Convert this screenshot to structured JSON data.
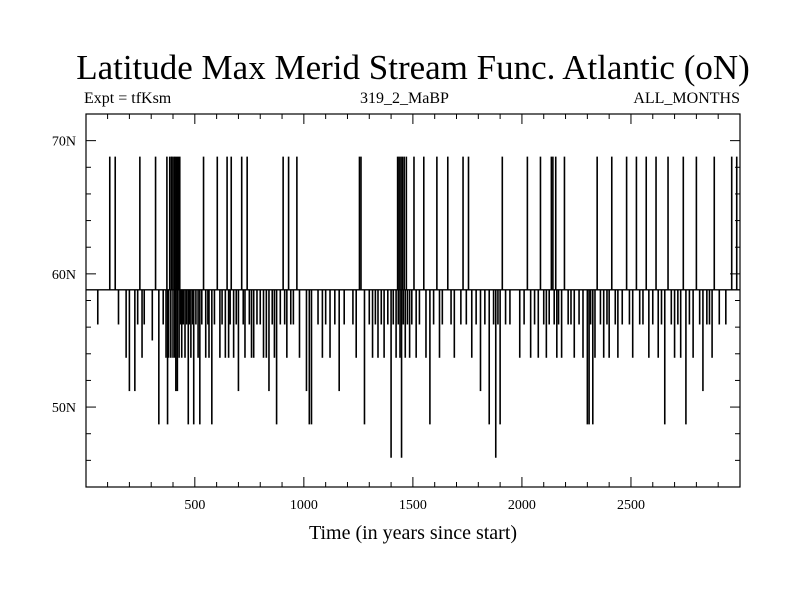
{
  "header": {
    "title": "Latitude Max Merid Stream Func. Atlantic (oN)",
    "left_label": "Expt = tfKsm",
    "center_label": "319_2_MaBP",
    "right_label": "ALL_MONTHS"
  },
  "chart_data": {
    "type": "bar",
    "title": "Latitude Max Merid Stream Func. Atlantic (oN)",
    "xlabel": "Time (in years since start)",
    "ylabel": "",
    "xlim": [
      1,
      3000
    ],
    "ylim": [
      44,
      72
    ],
    "baseline": 58.8,
    "grid": false,
    "x_ticks": [
      500,
      1000,
      1500,
      2000,
      2500
    ],
    "x_tick_labels": [
      "500",
      "1000",
      "1500",
      "2000",
      "2500"
    ],
    "y_ticks": [
      50,
      60,
      70
    ],
    "y_tick_labels": [
      "50N",
      "60N",
      "70N"
    ],
    "series": [
      {
        "points": [
          [
            55,
            56.2
          ],
          [
            110,
            68.8
          ],
          [
            135,
            68.8
          ],
          [
            150,
            56.2
          ],
          [
            185,
            53.7
          ],
          [
            200,
            51.2
          ],
          [
            225,
            51.2
          ],
          [
            238,
            56.2
          ],
          [
            248,
            68.8
          ],
          [
            258,
            53.7
          ],
          [
            268,
            56.2
          ],
          [
            305,
            55.0
          ],
          [
            320,
            68.8
          ],
          [
            335,
            48.7
          ],
          [
            355,
            56.2
          ],
          [
            368,
            53.7
          ],
          [
            372,
            68.8
          ],
          [
            375,
            48.7
          ],
          [
            380,
            53.7
          ],
          [
            385,
            68.8
          ],
          [
            390,
            53.7
          ],
          [
            393,
            68.8
          ],
          [
            396,
            68.8
          ],
          [
            400,
            53.7
          ],
          [
            404,
            68.8
          ],
          [
            408,
            53.7
          ],
          [
            410,
            68.8
          ],
          [
            413,
            51.2
          ],
          [
            417,
            68.8
          ],
          [
            420,
            51.2
          ],
          [
            424,
            68.8
          ],
          [
            428,
            53.7
          ],
          [
            431,
            68.8
          ],
          [
            435,
            56.2
          ],
          [
            440,
            53.7
          ],
          [
            447,
            56.2
          ],
          [
            455,
            53.7
          ],
          [
            462,
            56.2
          ],
          [
            470,
            48.7
          ],
          [
            475,
            56.2
          ],
          [
            482,
            53.7
          ],
          [
            490,
            56.2
          ],
          [
            495,
            48.7
          ],
          [
            505,
            56.2
          ],
          [
            515,
            53.7
          ],
          [
            523,
            48.7
          ],
          [
            532,
            56.2
          ],
          [
            540,
            68.8
          ],
          [
            550,
            53.7
          ],
          [
            560,
            56.2
          ],
          [
            565,
            53.7
          ],
          [
            578,
            48.7
          ],
          [
            590,
            56.2
          ],
          [
            603,
            68.8
          ],
          [
            615,
            53.7
          ],
          [
            625,
            56.2
          ],
          [
            640,
            53.7
          ],
          [
            648,
            68.8
          ],
          [
            655,
            53.7
          ],
          [
            662,
            56.2
          ],
          [
            667,
            68.8
          ],
          [
            678,
            53.7
          ],
          [
            690,
            56.2
          ],
          [
            700,
            51.2
          ],
          [
            715,
            68.8
          ],
          [
            722,
            56.2
          ],
          [
            730,
            53.7
          ],
          [
            740,
            68.8
          ],
          [
            750,
            56.2
          ],
          [
            760,
            53.7
          ],
          [
            770,
            53.7
          ],
          [
            785,
            56.2
          ],
          [
            800,
            56.2
          ],
          [
            815,
            53.7
          ],
          [
            828,
            53.7
          ],
          [
            840,
            51.2
          ],
          [
            855,
            56.2
          ],
          [
            865,
            53.7
          ],
          [
            875,
            48.7
          ],
          [
            892,
            56.2
          ],
          [
            905,
            68.8
          ],
          [
            912,
            56.2
          ],
          [
            922,
            53.7
          ],
          [
            930,
            68.8
          ],
          [
            940,
            56.2
          ],
          [
            952,
            56.2
          ],
          [
            968,
            68.8
          ],
          [
            980,
            53.7
          ],
          [
            1012,
            51.2
          ],
          [
            1025,
            48.7
          ],
          [
            1035,
            48.7
          ],
          [
            1065,
            56.2
          ],
          [
            1085,
            53.7
          ],
          [
            1100,
            56.2
          ],
          [
            1120,
            53.7
          ],
          [
            1142,
            56.2
          ],
          [
            1162,
            51.2
          ],
          [
            1185,
            56.2
          ],
          [
            1225,
            56.2
          ],
          [
            1240,
            53.7
          ],
          [
            1255,
            68.8
          ],
          [
            1262,
            68.8
          ],
          [
            1278,
            48.7
          ],
          [
            1300,
            56.2
          ],
          [
            1315,
            53.7
          ],
          [
            1328,
            56.2
          ],
          [
            1340,
            53.7
          ],
          [
            1355,
            56.2
          ],
          [
            1368,
            53.7
          ],
          [
            1385,
            56.2
          ],
          [
            1400,
            46.2
          ],
          [
            1410,
            56.2
          ],
          [
            1423,
            53.7
          ],
          [
            1430,
            68.8
          ],
          [
            1433,
            56.2
          ],
          [
            1437,
            68.8
          ],
          [
            1441,
            53.7
          ],
          [
            1445,
            68.8
          ],
          [
            1448,
            46.2
          ],
          [
            1452,
            68.8
          ],
          [
            1456,
            56.2
          ],
          [
            1460,
            68.8
          ],
          [
            1465,
            53.7
          ],
          [
            1470,
            68.8
          ],
          [
            1475,
            56.2
          ],
          [
            1485,
            53.7
          ],
          [
            1495,
            56.2
          ],
          [
            1505,
            68.8
          ],
          [
            1515,
            53.7
          ],
          [
            1530,
            56.2
          ],
          [
            1550,
            68.8
          ],
          [
            1560,
            53.7
          ],
          [
            1578,
            48.7
          ],
          [
            1595,
            56.2
          ],
          [
            1610,
            68.8
          ],
          [
            1622,
            53.7
          ],
          [
            1635,
            56.2
          ],
          [
            1660,
            68.8
          ],
          [
            1675,
            56.2
          ],
          [
            1690,
            53.7
          ],
          [
            1720,
            56.2
          ],
          [
            1730,
            68.8
          ],
          [
            1745,
            56.2
          ],
          [
            1755,
            68.8
          ],
          [
            1770,
            53.7
          ],
          [
            1790,
            56.2
          ],
          [
            1810,
            51.2
          ],
          [
            1830,
            56.2
          ],
          [
            1850,
            48.7
          ],
          [
            1870,
            56.2
          ],
          [
            1880,
            46.2
          ],
          [
            1890,
            56.2
          ],
          [
            1900,
            48.7
          ],
          [
            1910,
            68.8
          ],
          [
            1925,
            56.2
          ],
          [
            1945,
            56.2
          ],
          [
            1990,
            53.7
          ],
          [
            2010,
            56.2
          ],
          [
            2025,
            68.8
          ],
          [
            2040,
            53.7
          ],
          [
            2058,
            56.2
          ],
          [
            2075,
            53.7
          ],
          [
            2085,
            68.8
          ],
          [
            2100,
            56.2
          ],
          [
            2112,
            53.7
          ],
          [
            2125,
            56.2
          ],
          [
            2135,
            68.8
          ],
          [
            2142,
            68.8
          ],
          [
            2148,
            56.2
          ],
          [
            2155,
            68.8
          ],
          [
            2160,
            53.7
          ],
          [
            2168,
            56.2
          ],
          [
            2182,
            53.7
          ],
          [
            2195,
            68.8
          ],
          [
            2212,
            56.2
          ],
          [
            2225,
            56.2
          ],
          [
            2240,
            53.7
          ],
          [
            2262,
            56.2
          ],
          [
            2280,
            53.7
          ],
          [
            2300,
            48.7
          ],
          [
            2308,
            48.7
          ],
          [
            2315,
            56.2
          ],
          [
            2325,
            48.7
          ],
          [
            2335,
            53.7
          ],
          [
            2345,
            68.8
          ],
          [
            2360,
            56.2
          ],
          [
            2375,
            53.7
          ],
          [
            2390,
            56.2
          ],
          [
            2400,
            53.7
          ],
          [
            2412,
            68.8
          ],
          [
            2428,
            56.2
          ],
          [
            2440,
            53.7
          ],
          [
            2460,
            56.2
          ],
          [
            2480,
            68.8
          ],
          [
            2493,
            56.2
          ],
          [
            2508,
            53.7
          ],
          [
            2525,
            68.8
          ],
          [
            2540,
            56.2
          ],
          [
            2555,
            56.2
          ],
          [
            2570,
            68.8
          ],
          [
            2582,
            53.7
          ],
          [
            2600,
            56.2
          ],
          [
            2615,
            68.8
          ],
          [
            2625,
            53.7
          ],
          [
            2640,
            56.2
          ],
          [
            2655,
            48.7
          ],
          [
            2670,
            68.8
          ],
          [
            2685,
            56.2
          ],
          [
            2700,
            53.7
          ],
          [
            2715,
            56.2
          ],
          [
            2728,
            53.7
          ],
          [
            2740,
            68.8
          ],
          [
            2752,
            48.7
          ],
          [
            2768,
            56.2
          ],
          [
            2785,
            53.7
          ],
          [
            2800,
            68.8
          ],
          [
            2815,
            56.2
          ],
          [
            2830,
            51.2
          ],
          [
            2848,
            56.2
          ],
          [
            2860,
            56.2
          ],
          [
            2872,
            53.7
          ],
          [
            2882,
            68.8
          ],
          [
            2905,
            56.2
          ],
          [
            2935,
            56.2
          ],
          [
            2962,
            68.8
          ],
          [
            2985,
            68.8
          ]
        ]
      }
    ]
  }
}
